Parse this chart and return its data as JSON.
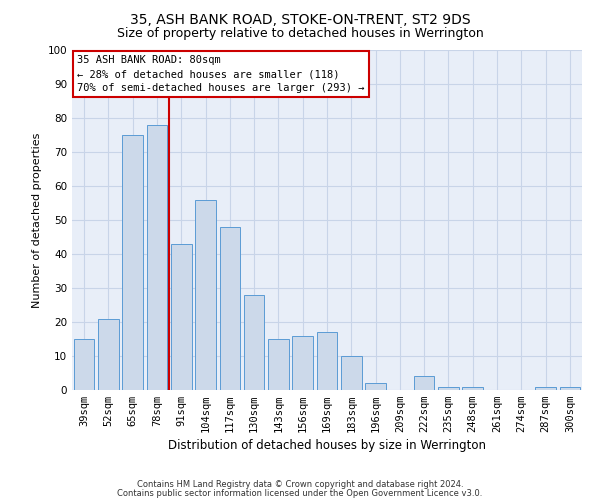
{
  "title": "35, ASH BANK ROAD, STOKE-ON-TRENT, ST2 9DS",
  "subtitle": "Size of property relative to detached houses in Werrington",
  "xlabel": "Distribution of detached houses by size in Werrington",
  "ylabel": "Number of detached properties",
  "categories": [
    "39sqm",
    "52sqm",
    "65sqm",
    "78sqm",
    "91sqm",
    "104sqm",
    "117sqm",
    "130sqm",
    "143sqm",
    "156sqm",
    "169sqm",
    "183sqm",
    "196sqm",
    "209sqm",
    "222sqm",
    "235sqm",
    "248sqm",
    "261sqm",
    "274sqm",
    "287sqm",
    "300sqm"
  ],
  "values": [
    15,
    21,
    75,
    78,
    43,
    56,
    48,
    28,
    15,
    16,
    17,
    10,
    2,
    0,
    4,
    1,
    1,
    0,
    0,
    1,
    1
  ],
  "bar_color": "#ccd9ea",
  "bar_edge_color": "#5b9bd5",
  "vline_x": 3.5,
  "vline_color": "#cc0000",
  "annotation_line1": "35 ASH BANK ROAD: 80sqm",
  "annotation_line2": "← 28% of detached houses are smaller (118)",
  "annotation_line3": "70% of semi-detached houses are larger (293) →",
  "annotation_box_color": "#ffffff",
  "annotation_box_edge": "#cc0000",
  "grid_color": "#c8d4e8",
  "background_color": "#e8eef8",
  "ylim": [
    0,
    100
  ],
  "yticks": [
    0,
    10,
    20,
    30,
    40,
    50,
    60,
    70,
    80,
    90,
    100
  ],
  "footer1": "Contains HM Land Registry data © Crown copyright and database right 2024.",
  "footer2": "Contains public sector information licensed under the Open Government Licence v3.0.",
  "title_fontsize": 10,
  "subtitle_fontsize": 9,
  "ylabel_fontsize": 8,
  "xlabel_fontsize": 8.5,
  "tick_fontsize": 7.5,
  "annot_fontsize": 7.5,
  "footer_fontsize": 6
}
